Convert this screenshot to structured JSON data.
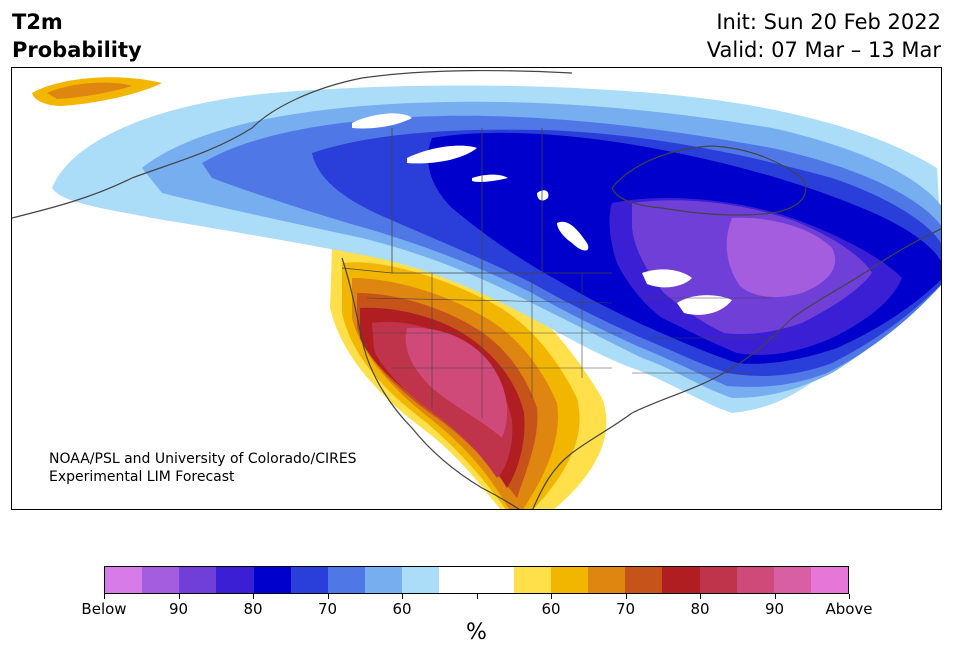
{
  "header": {
    "title_line1": "T2m",
    "title_line2": "Probability",
    "init": "Init: Sun 20 Feb 2022",
    "valid": "Valid: 07 Mar – 13 Mar"
  },
  "map": {
    "credit_line1": "NOAA/PSL and University of Colorado/CIRES",
    "credit_line2": "Experimental LIM Forecast"
  },
  "colorbar": {
    "colors": [
      "#d67be8",
      "#a55de0",
      "#6f3fd8",
      "#3a1fd4",
      "#0000cc",
      "#2a3fd9",
      "#4f78e6",
      "#76aef0",
      "#abdcf8",
      "#ffffff",
      "#ffffff",
      "#ffe04a",
      "#f2b600",
      "#de860f",
      "#c6541a",
      "#b01e22",
      "#c0344b",
      "#cf4a78",
      "#d95fa5",
      "#e676d8"
    ],
    "labels": [
      "Below",
      "90",
      "80",
      "70",
      "60",
      "",
      "60",
      "70",
      "80",
      "90",
      "Above"
    ],
    "unit": "%"
  }
}
